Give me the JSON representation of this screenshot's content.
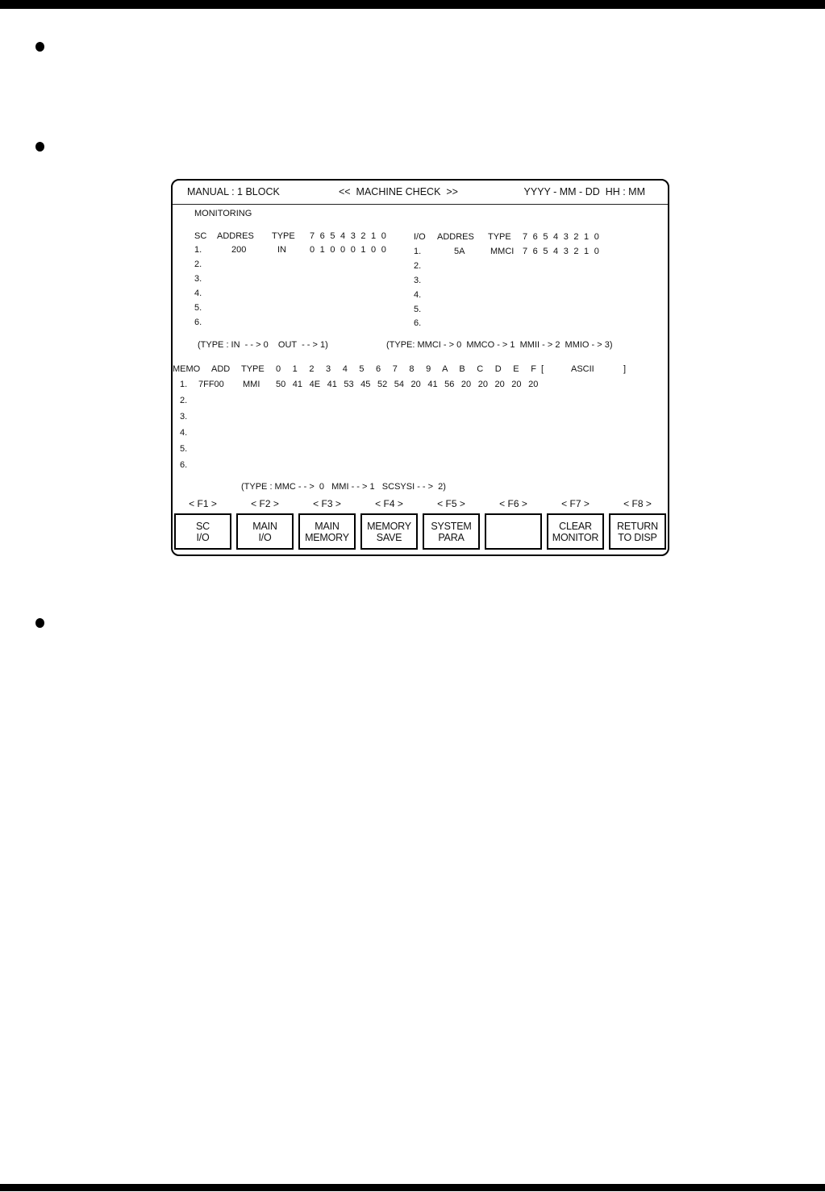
{
  "colors": {
    "bar": "#000000",
    "text": "#111111"
  },
  "screen": {
    "header": {
      "left": "MANUAL : 1 BLOCK",
      "center": "<<  MACHINE CHECK  >>",
      "right": "YYYY - MM - DD  HH : MM"
    },
    "monitoring": {
      "title": "MONITORING",
      "sc": {
        "headers": {
          "c1": "SC",
          "c2": "ADDRES",
          "c3": "TYPE",
          "bits": "7 6 5 4 3 2 1 0"
        },
        "rows": [
          {
            "num": "1.",
            "addres": "200",
            "type": "IN",
            "bits": "0 1 0 0 0 1 0 0"
          },
          {
            "num": "2."
          },
          {
            "num": "3."
          },
          {
            "num": "4."
          },
          {
            "num": "5."
          },
          {
            "num": "6."
          }
        ],
        "legend": "(TYPE : IN  - - > 0    OUT  - - > 1)"
      },
      "io": {
        "headers": {
          "c1": "I/O",
          "c2": "ADDRES",
          "c3": "TYPE",
          "bits": "7 6 5 4 3 2 1 0"
        },
        "rows": [
          {
            "num": "1.",
            "addres": "5A",
            "type": "MMCI",
            "bits": "7 6 5 4 3 2 1 0"
          },
          {
            "num": "2."
          },
          {
            "num": "3."
          },
          {
            "num": "4."
          },
          {
            "num": "5."
          },
          {
            "num": "6."
          }
        ],
        "legend": "(TYPE: MMCI - > 0  MMCO - > 1  MMII - > 2  MMIO - > 3)"
      }
    },
    "memo": {
      "headers": {
        "c1": "MEMO",
        "c2": "ADD",
        "c3": "TYPE",
        "hex": "0 1 2 3 4 5 6 7 8 9 A B C D E F",
        "bracket_open": "[",
        "ascii": "ASCII",
        "bracket_close": "]"
      },
      "rows": [
        {
          "num": "1.",
          "add": "7FF00",
          "type": "MMI",
          "values": "50 41 4E 41 53 45 52 54 20 41 56 20 20 20 20 20"
        },
        {
          "num": "2."
        },
        {
          "num": "3."
        },
        {
          "num": "4."
        },
        {
          "num": "5."
        },
        {
          "num": "6."
        }
      ],
      "legend": "(TYPE : MMC - - >  0   MMI - - > 1   SCSYSI - - >  2)"
    },
    "fkeys": [
      {
        "label": "< F1 >",
        "line1": "SC",
        "line2": "I/O"
      },
      {
        "label": "< F2 >",
        "line1": "MAIN",
        "line2": "I/O"
      },
      {
        "label": "< F3 >",
        "line1": "MAIN",
        "line2": "MEMORY"
      },
      {
        "label": "< F4 >",
        "line1": "MEMORY",
        "line2": "SAVE"
      },
      {
        "label": "< F5 >",
        "line1": "SYSTEM",
        "line2": "PARA"
      },
      {
        "label": "< F6 >",
        "line1": "",
        "line2": ""
      },
      {
        "label": "< F7 >",
        "line1": "CLEAR",
        "line2": "MONITOR"
      },
      {
        "label": "< F8 >",
        "line1": "RETURN",
        "line2": "TO DISP"
      }
    ]
  }
}
